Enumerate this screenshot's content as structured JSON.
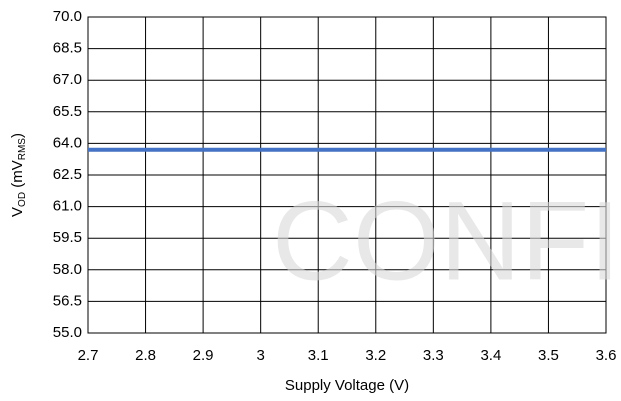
{
  "chart_data": {
    "type": "line",
    "xlabel": "Supply Voltage (V)",
    "ylabel": [
      "V",
      "OD",
      " (mV",
      "RMS",
      ")"
    ],
    "watermark": "CONFID",
    "x": [
      2.7,
      2.8,
      2.9,
      3,
      3.1,
      3.2,
      3.3,
      3.4,
      3.5,
      3.6
    ],
    "series": [
      {
        "color": "#4472c4",
        "values": [
          63.7,
          63.7,
          63.7,
          63.7,
          63.7,
          63.7,
          63.7,
          63.7,
          63.7,
          63.7
        ]
      }
    ],
    "xlim": [
      2.7,
      3.6
    ],
    "xticks": [
      2.7,
      2.8,
      2.9,
      3,
      3.1,
      3.2,
      3.3,
      3.4,
      3.5,
      3.6
    ],
    "ylim": [
      55,
      70
    ],
    "yticks": [
      {
        "value": 55,
        "label": "55.0"
      },
      56.5,
      {
        "value": 58,
        "label": "58.0"
      },
      59.5,
      {
        "value": 61,
        "label": "61.0"
      },
      62.5,
      {
        "value": 64,
        "label": "64.0"
      },
      65.5,
      {
        "value": 67,
        "label": "67.0"
      },
      68.5,
      {
        "value": 70,
        "label": "70.0"
      }
    ],
    "grid": true
  }
}
